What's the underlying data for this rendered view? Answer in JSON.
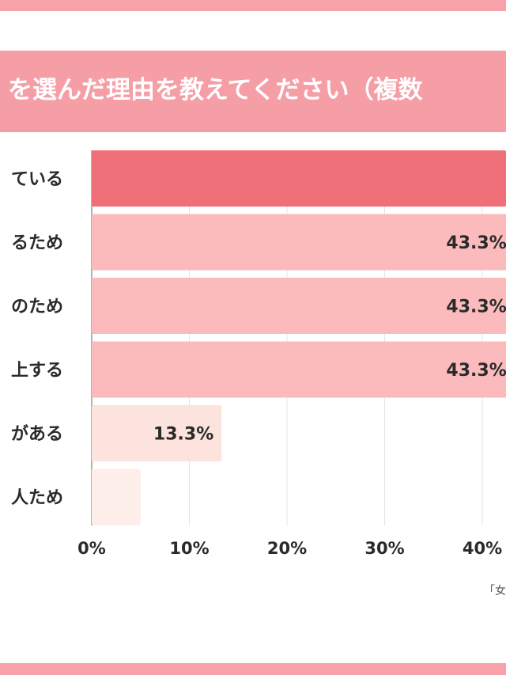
{
  "title": "を選んだ理由を教えてください（複数",
  "source": "「女",
  "chart_data": {
    "type": "bar",
    "orientation": "horizontal",
    "categories": [
      "ている",
      "るため",
      "のため",
      "上する",
      "がある",
      "人ため"
    ],
    "values": [
      null,
      43.3,
      43.3,
      43.3,
      13.3,
      5
    ],
    "value_labels": [
      "",
      "43.3%",
      "43.3%",
      "43.3%",
      "13.3%",
      ""
    ],
    "bar_colors": [
      "#f07079",
      "#fbbbbd",
      "#fbbbbd",
      "#fbbbbd",
      "#fde3dd",
      "#feeeea"
    ],
    "xticks": [
      "0%",
      "10%",
      "20%",
      "30%",
      "40%"
    ],
    "xlim": [
      0,
      45
    ],
    "grid": true
  }
}
